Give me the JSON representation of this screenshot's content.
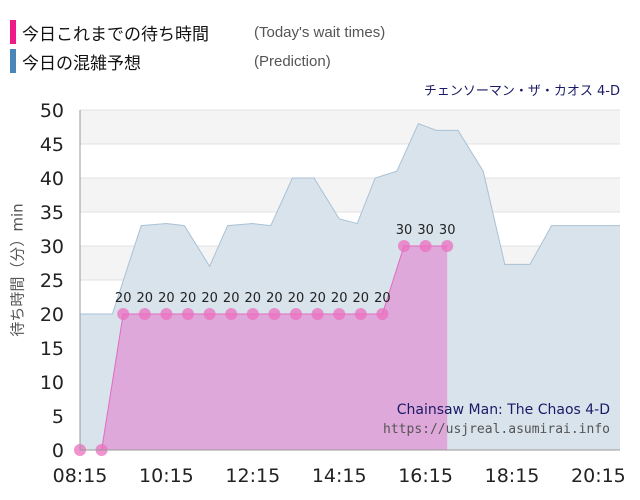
{
  "legend": [
    {
      "label": "今日これまでの待ち時間",
      "note": "(Today's wait times)",
      "color": "#ee1a8a"
    },
    {
      "label": "今日の混雑予想",
      "note": "(Prediction)",
      "color": "#4a86b8"
    }
  ],
  "attraction_title_ja": "チェンソーマン・ザ・カオス 4-D",
  "watermark": {
    "title": "Chainsaw Man: The Chaos 4-D",
    "url": "https://usjreal.asumirai.info"
  },
  "chart_data": {
    "type": "area",
    "ylabel": "待ち時間（分）min",
    "ylim": [
      0,
      50
    ],
    "yticks": [
      0,
      5,
      10,
      15,
      20,
      25,
      30,
      35,
      40,
      45,
      50
    ],
    "xlim": [
      "08:15",
      "20:45"
    ],
    "xticks": [
      "08:15",
      "10:15",
      "12:15",
      "14:15",
      "16:15",
      "18:15",
      "20:15"
    ],
    "grid": true,
    "series": [
      {
        "role": "prediction",
        "fill": "#d8e3ec",
        "stroke": "#a9c2d6",
        "points": [
          [
            "08:15",
            20
          ],
          [
            "09:00",
            20
          ],
          [
            "09:40",
            33
          ],
          [
            "10:15",
            33.3
          ],
          [
            "10:40",
            33
          ],
          [
            "11:15",
            27
          ],
          [
            "11:40",
            33
          ],
          [
            "12:15",
            33.3
          ],
          [
            "12:40",
            33
          ],
          [
            "13:10",
            40
          ],
          [
            "13:40",
            40
          ],
          [
            "14:15",
            34
          ],
          [
            "14:40",
            33.3
          ],
          [
            "15:05",
            40
          ],
          [
            "15:35",
            41
          ],
          [
            "16:05",
            48
          ],
          [
            "16:30",
            47
          ],
          [
            "17:00",
            47
          ],
          [
            "17:35",
            41
          ],
          [
            "18:05",
            27.3
          ],
          [
            "18:40",
            27.3
          ],
          [
            "19:10",
            33
          ],
          [
            "19:40",
            33
          ],
          [
            "20:45",
            33
          ]
        ]
      },
      {
        "role": "actual",
        "fill": "#e19ed7",
        "stroke": "#e06cc0",
        "marker_color": "#ec6fbf",
        "points": [
          [
            "08:15",
            0
          ],
          [
            "08:45",
            0
          ],
          [
            "09:15",
            20
          ],
          [
            "09:45",
            20
          ],
          [
            "10:15",
            20
          ],
          [
            "10:45",
            20
          ],
          [
            "11:15",
            20
          ],
          [
            "11:45",
            20
          ],
          [
            "12:15",
            20
          ],
          [
            "12:45",
            20
          ],
          [
            "13:15",
            20
          ],
          [
            "13:45",
            20
          ],
          [
            "14:15",
            20
          ],
          [
            "14:45",
            20
          ],
          [
            "15:15",
            20
          ],
          [
            "15:45",
            30
          ],
          [
            "16:15",
            30
          ],
          [
            "16:45",
            30
          ]
        ],
        "data_labels": [
          "",
          "",
          "20",
          "20",
          "20",
          "20",
          "20",
          "20",
          "20",
          "20",
          "20",
          "20",
          "20",
          "20",
          "20",
          "30",
          "30",
          "30"
        ]
      }
    ]
  }
}
